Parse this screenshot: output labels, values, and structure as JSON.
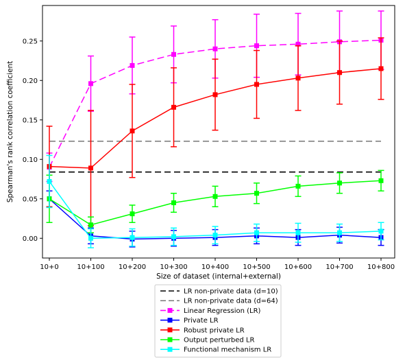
{
  "chart_data": {
    "type": "line",
    "xlabel": "Size of dataset (internal+external)",
    "ylabel": "Spearman's rank correlation coefficient",
    "categories": [
      "10+0",
      "10+100",
      "10+200",
      "10+300",
      "10+400",
      "10+500",
      "10+600",
      "10+700",
      "10+800"
    ],
    "ylim": [
      -0.025,
      0.295
    ],
    "yticks": [
      "0.00",
      "0.05",
      "0.10",
      "0.15",
      "0.20",
      "0.25"
    ],
    "grid": false,
    "legend_position": "bottom-center",
    "reference_lines": [
      {
        "name": "LR non-private data (d=10)",
        "value": 0.084,
        "color": "#000000"
      },
      {
        "name": "LR non-private data (d=64)",
        "value": 0.123,
        "color": "#808080"
      }
    ],
    "series": [
      {
        "name": "Linear Regression (LR)",
        "color": "#ff00ff",
        "dashed": true,
        "values": [
          0.09,
          0.196,
          0.219,
          0.233,
          0.24,
          0.244,
          0.246,
          0.249,
          0.251
        ],
        "err": [
          0.018,
          0.035,
          0.036,
          0.036,
          0.037,
          0.04,
          0.039,
          0.039,
          0.037
        ]
      },
      {
        "name": "Private LR",
        "color": "#0000ff",
        "dashed": false,
        "values": [
          0.05,
          0.003,
          -0.001,
          0.0,
          0.001,
          0.003,
          0.001,
          0.004,
          0.001
        ],
        "err": [
          0.01,
          0.01,
          0.01,
          0.01,
          0.01,
          0.01,
          0.01,
          0.01,
          0.01
        ]
      },
      {
        "name": "Robust private LR",
        "color": "#ff0000",
        "dashed": false,
        "values": [
          0.091,
          0.089,
          0.136,
          0.166,
          0.182,
          0.195,
          0.203,
          0.21,
          0.215
        ],
        "err": [
          0.051,
          0.073,
          0.059,
          0.05,
          0.045,
          0.043,
          0.041,
          0.04,
          0.039
        ]
      },
      {
        "name": "Output perturbed LR",
        "color": "#00ff00",
        "dashed": false,
        "values": [
          0.05,
          0.017,
          0.031,
          0.045,
          0.053,
          0.057,
          0.066,
          0.07,
          0.073
        ],
        "err": [
          0.03,
          0.01,
          0.011,
          0.012,
          0.013,
          0.013,
          0.013,
          0.013,
          0.013
        ]
      },
      {
        "name": "Functional mechanism LR",
        "color": "#00ffff",
        "dashed": false,
        "values": [
          0.072,
          0.0,
          0.001,
          0.002,
          0.004,
          0.007,
          0.007,
          0.007,
          0.009
        ],
        "err": [
          0.033,
          0.012,
          0.011,
          0.011,
          0.011,
          0.011,
          0.012,
          0.011,
          0.011
        ]
      }
    ]
  }
}
